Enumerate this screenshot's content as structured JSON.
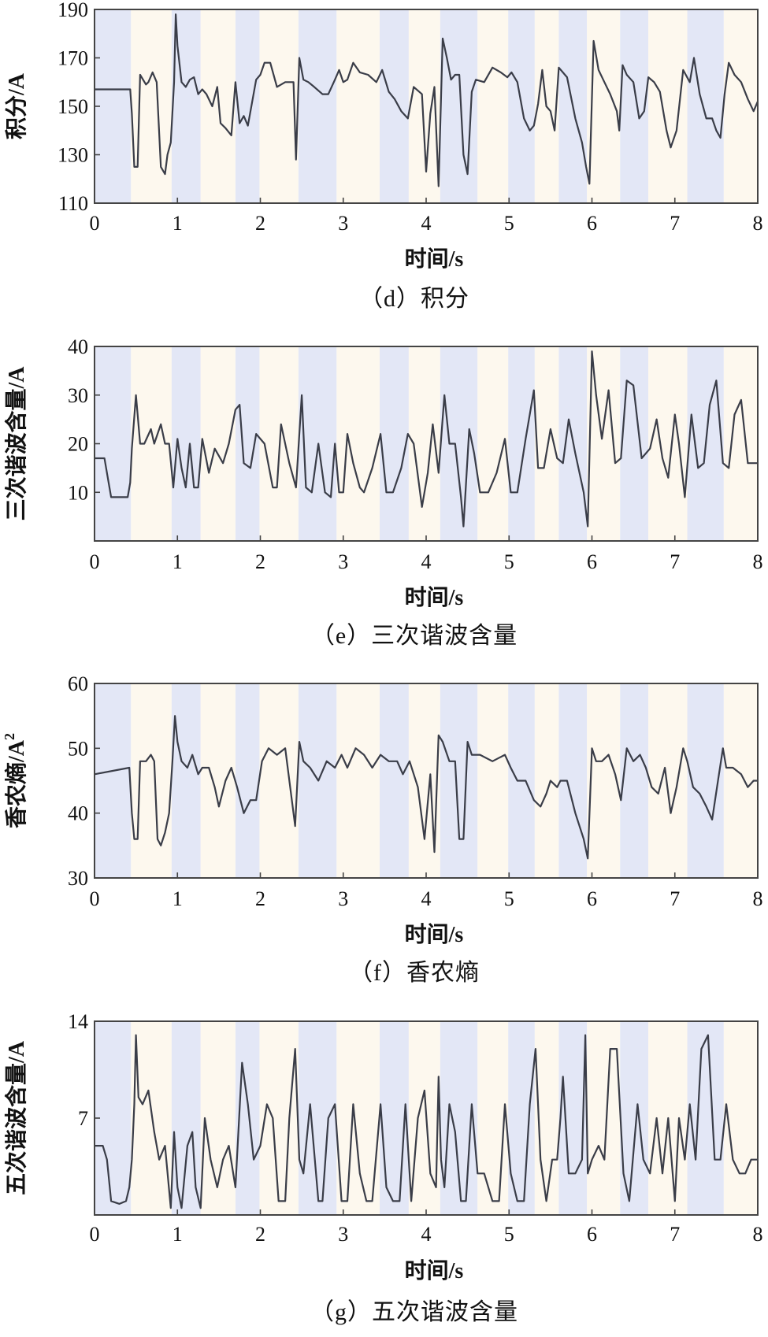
{
  "background_colors": [
    "#e3e7f6",
    "#fdf8ee"
  ],
  "background_bands": [
    [
      0,
      0.44,
      0
    ],
    [
      0.44,
      0.93,
      1
    ],
    [
      0.93,
      1.28,
      0
    ],
    [
      1.28,
      1.7,
      1
    ],
    [
      1.7,
      1.99,
      0
    ],
    [
      1.99,
      2.46,
      1
    ],
    [
      2.46,
      2.92,
      0
    ],
    [
      2.92,
      3.44,
      1
    ],
    [
      3.44,
      3.79,
      0
    ],
    [
      3.79,
      4.17,
      1
    ],
    [
      4.17,
      4.62,
      0
    ],
    [
      4.62,
      4.99,
      1
    ],
    [
      4.99,
      5.31,
      0
    ],
    [
      5.31,
      5.6,
      1
    ],
    [
      5.6,
      5.94,
      0
    ],
    [
      5.94,
      6.34,
      1
    ],
    [
      6.34,
      6.68,
      0
    ],
    [
      6.68,
      7.15,
      1
    ],
    [
      7.15,
      7.59,
      0
    ],
    [
      7.59,
      8,
      1
    ]
  ],
  "chart_data": [
    {
      "type": "line",
      "caption": "（d）积分",
      "xlabel": "时间/s",
      "ylabel": "积分/A",
      "xlim": [
        0,
        8
      ],
      "ylim": [
        110,
        190
      ],
      "xticks": [
        "0",
        "1",
        "2",
        "3",
        "4",
        "5",
        "6",
        "7",
        "8"
      ],
      "yticks": [
        "110",
        "130",
        "150",
        "170",
        "190"
      ],
      "series": [
        {
          "x": [
            0,
            0.43,
            0.45,
            0.48,
            0.52,
            0.55,
            0.62,
            0.65,
            0.7,
            0.75,
            0.8,
            0.85,
            0.88,
            0.92,
            0.96,
            0.98,
            1.0,
            1.05,
            1.1,
            1.15,
            1.2,
            1.25,
            1.3,
            1.35,
            1.42,
            1.48,
            1.52,
            1.58,
            1.65,
            1.7,
            1.75,
            1.8,
            1.85,
            1.95,
            2.0,
            2.05,
            2.12,
            2.2,
            2.3,
            2.4,
            2.43,
            2.47,
            2.52,
            2.58,
            2.65,
            2.75,
            2.82,
            2.9,
            2.95,
            3.0,
            3.05,
            3.12,
            3.2,
            3.3,
            3.4,
            3.47,
            3.55,
            3.62,
            3.7,
            3.78,
            3.85,
            3.95,
            4.0,
            4.05,
            4.1,
            4.15,
            4.2,
            4.25,
            4.3,
            4.35,
            4.4,
            4.45,
            4.5,
            4.55,
            4.6,
            4.7,
            4.8,
            4.9,
            4.98,
            5.03,
            5.1,
            5.18,
            5.25,
            5.3,
            5.35,
            5.4,
            5.45,
            5.5,
            5.55,
            5.6,
            5.7,
            5.8,
            5.88,
            5.93,
            5.97,
            6.02,
            6.08,
            6.15,
            6.22,
            6.3,
            6.33,
            6.37,
            6.42,
            6.5,
            6.57,
            6.63,
            6.68,
            6.75,
            6.82,
            6.9,
            6.95,
            7.02,
            7.1,
            7.18,
            7.23,
            7.3,
            7.38,
            7.45,
            7.5,
            7.55,
            7.6,
            7.65,
            7.72,
            7.8,
            7.88,
            7.95,
            8.0
          ],
          "y": [
            157,
            157,
            147,
            125,
            125,
            163,
            159,
            160,
            164,
            160,
            125,
            122,
            130,
            135,
            160,
            188,
            175,
            160,
            158,
            161,
            162,
            155,
            157,
            155,
            150,
            158,
            143,
            141,
            138,
            160,
            143,
            146,
            142,
            161,
            163,
            168,
            168,
            158,
            160,
            160,
            128,
            170,
            161,
            160,
            158,
            155,
            155,
            161,
            165,
            160,
            161,
            168,
            164,
            163,
            160,
            165,
            156,
            153,
            148,
            145,
            158,
            155,
            123,
            147,
            158,
            117,
            178,
            170,
            161,
            163,
            163,
            130,
            122,
            156,
            161,
            160,
            166,
            164,
            162,
            164,
            160,
            145,
            140,
            142,
            151,
            165,
            150,
            148,
            140,
            166,
            162,
            145,
            135,
            125,
            118,
            177,
            165,
            160,
            155,
            148,
            140,
            167,
            163,
            160,
            145,
            148,
            162,
            160,
            156,
            140,
            133,
            140,
            165,
            160,
            170,
            155,
            145,
            145,
            140,
            137,
            155,
            168,
            163,
            160,
            153,
            148,
            152
          ]
        }
      ]
    },
    {
      "type": "line",
      "caption": "（e）三次谐波含量",
      "xlabel": "时间/s",
      "ylabel": "三次谐波含量/A",
      "xlim": [
        0,
        8
      ],
      "ylim": [
        0,
        40
      ],
      "xticks": [
        "0",
        "1",
        "2",
        "3",
        "4",
        "5",
        "6",
        "7",
        "8"
      ],
      "yticks": [
        "10",
        "20",
        "30",
        "40"
      ],
      "series": [
        {
          "x": [
            0,
            0.12,
            0.17,
            0.2,
            0.27,
            0.4,
            0.43,
            0.45,
            0.5,
            0.55,
            0.6,
            0.68,
            0.72,
            0.8,
            0.85,
            0.9,
            0.95,
            1.0,
            1.05,
            1.1,
            1.15,
            1.2,
            1.25,
            1.3,
            1.38,
            1.45,
            1.55,
            1.62,
            1.7,
            1.75,
            1.8,
            1.88,
            1.95,
            2.05,
            2.15,
            2.2,
            2.25,
            2.35,
            2.43,
            2.5,
            2.55,
            2.62,
            2.7,
            2.78,
            2.85,
            2.9,
            2.95,
            3.0,
            3.05,
            3.12,
            3.2,
            3.25,
            3.35,
            3.45,
            3.52,
            3.6,
            3.7,
            3.78,
            3.85,
            3.95,
            4.02,
            4.08,
            4.15,
            4.22,
            4.28,
            4.35,
            4.42,
            4.45,
            4.52,
            4.58,
            4.65,
            4.75,
            4.85,
            4.95,
            5.02,
            5.1,
            5.2,
            5.3,
            5.35,
            5.42,
            5.5,
            5.58,
            5.65,
            5.72,
            5.8,
            5.9,
            5.95,
            6.0,
            6.05,
            6.12,
            6.2,
            6.28,
            6.35,
            6.42,
            6.5,
            6.6,
            6.7,
            6.78,
            6.85,
            6.92,
            7.0,
            7.05,
            7.12,
            7.2,
            7.28,
            7.35,
            7.42,
            7.5,
            7.58,
            7.65,
            7.72,
            7.8,
            7.88,
            7.95,
            8.0
          ],
          "y": [
            17,
            17,
            12,
            9,
            9,
            9,
            12,
            19,
            30,
            20,
            20,
            23,
            20,
            24,
            20,
            20,
            11,
            21,
            15,
            11,
            20,
            11,
            11,
            21,
            14,
            19,
            16,
            20,
            27,
            28,
            16,
            15,
            22,
            20,
            11,
            11,
            24,
            16,
            11,
            30,
            11,
            10,
            20,
            10,
            9,
            20,
            10,
            10,
            22,
            16,
            11,
            10,
            15,
            22,
            10,
            10,
            15,
            22,
            20,
            7,
            14,
            24,
            14,
            30,
            20,
            20,
            9,
            3,
            23,
            18,
            10,
            10,
            14,
            21,
            10,
            10,
            21,
            31,
            15,
            15,
            23,
            17,
            16,
            25,
            18,
            10,
            3,
            39,
            30,
            21,
            31,
            16,
            17,
            33,
            32,
            17,
            19,
            25,
            17,
            13,
            26,
            20,
            9,
            26,
            15,
            16,
            28,
            33,
            16,
            15,
            26,
            29,
            16,
            16,
            16
          ]
        }
      ]
    },
    {
      "type": "line",
      "caption": "（f）香农熵",
      "xlabel": "时间/s",
      "ylabel": "香农熵/A²",
      "ylabel_base": "香农熵/A",
      "ylabel_sup": "2",
      "xlim": [
        0,
        8
      ],
      "ylim": [
        30,
        60
      ],
      "xticks": [
        "0",
        "1",
        "2",
        "3",
        "4",
        "5",
        "6",
        "7",
        "8"
      ],
      "yticks": [
        "30",
        "40",
        "50",
        "60"
      ],
      "series": [
        {
          "x": [
            0,
            0.42,
            0.45,
            0.48,
            0.52,
            0.55,
            0.62,
            0.68,
            0.72,
            0.76,
            0.8,
            0.85,
            0.9,
            0.94,
            0.97,
            1.0,
            1.05,
            1.12,
            1.18,
            1.25,
            1.3,
            1.38,
            1.45,
            1.5,
            1.58,
            1.65,
            1.72,
            1.8,
            1.88,
            1.95,
            2.02,
            2.1,
            2.2,
            2.3,
            2.42,
            2.47,
            2.52,
            2.6,
            2.7,
            2.8,
            2.9,
            2.98,
            3.05,
            3.15,
            3.25,
            3.35,
            3.45,
            3.55,
            3.65,
            3.72,
            3.8,
            3.9,
            3.98,
            4.05,
            4.1,
            4.15,
            4.2,
            4.28,
            4.35,
            4.4,
            4.45,
            4.5,
            4.55,
            4.65,
            4.8,
            4.95,
            5.02,
            5.1,
            5.2,
            5.3,
            5.38,
            5.45,
            5.5,
            5.58,
            5.62,
            5.7,
            5.8,
            5.9,
            5.95,
            6.0,
            6.05,
            6.12,
            6.2,
            6.28,
            6.35,
            6.42,
            6.5,
            6.58,
            6.65,
            6.72,
            6.8,
            6.88,
            6.95,
            7.02,
            7.1,
            7.15,
            7.22,
            7.3,
            7.38,
            7.45,
            7.52,
            7.58,
            7.62,
            7.7,
            7.8,
            7.88,
            7.95,
            8.0
          ],
          "y": [
            46,
            47,
            40,
            36,
            36,
            48,
            48,
            49,
            48,
            36,
            35,
            37,
            40,
            48,
            55,
            51,
            48,
            47,
            49,
            46,
            47,
            47,
            44,
            41,
            45,
            47,
            44,
            40,
            42,
            42,
            48,
            50,
            49,
            50,
            38,
            51,
            48,
            47,
            45,
            48,
            47,
            49,
            47,
            50,
            49,
            47,
            49,
            48,
            48,
            46,
            48,
            44,
            36,
            46,
            34,
            52,
            51,
            48,
            48,
            36,
            36,
            51,
            49,
            49,
            48,
            49,
            47,
            45,
            45,
            42,
            41,
            43,
            45,
            44,
            45,
            45,
            40,
            36,
            33,
            50,
            48,
            48,
            49,
            46,
            42,
            50,
            48,
            49,
            47,
            44,
            43,
            47,
            40,
            44,
            50,
            48,
            44,
            43,
            41,
            39,
            45,
            50,
            47,
            47,
            46,
            44,
            45,
            45
          ]
        }
      ]
    },
    {
      "type": "line",
      "caption": "（g）五次谐波含量",
      "xlabel": "时间/s",
      "ylabel": "五次谐波含量/A",
      "xlim": [
        0,
        8
      ],
      "ylim": [
        0,
        14
      ],
      "xticks": [
        "0",
        "1",
        "2",
        "3",
        "4",
        "5",
        "6",
        "7",
        "8"
      ],
      "yticks": [
        "7",
        "14"
      ],
      "series": [
        {
          "x": [
            0,
            0.1,
            0.15,
            0.2,
            0.3,
            0.38,
            0.42,
            0.45,
            0.48,
            0.5,
            0.53,
            0.58,
            0.65,
            0.72,
            0.78,
            0.85,
            0.92,
            0.96,
            1.0,
            1.05,
            1.12,
            1.18,
            1.22,
            1.28,
            1.33,
            1.4,
            1.48,
            1.55,
            1.62,
            1.7,
            1.78,
            1.85,
            1.92,
            2.0,
            2.08,
            2.15,
            2.22,
            2.3,
            2.35,
            2.42,
            2.47,
            2.52,
            2.6,
            2.7,
            2.75,
            2.82,
            2.9,
            2.98,
            3.05,
            3.12,
            3.2,
            3.28,
            3.35,
            3.45,
            3.52,
            3.6,
            3.68,
            3.75,
            3.82,
            3.9,
            3.98,
            4.05,
            4.12,
            4.15,
            4.18,
            4.22,
            4.28,
            4.35,
            4.42,
            4.48,
            4.55,
            4.62,
            4.7,
            4.8,
            4.88,
            4.95,
            5.02,
            5.1,
            5.18,
            5.25,
            5.32,
            5.38,
            5.45,
            5.52,
            5.58,
            5.62,
            5.65,
            5.72,
            5.8,
            5.88,
            5.92,
            5.95,
            6.0,
            6.08,
            6.15,
            6.22,
            6.3,
            6.38,
            6.45,
            6.55,
            6.62,
            6.7,
            6.78,
            6.85,
            6.92,
            7.0,
            7.05,
            7.12,
            7.18,
            7.25,
            7.32,
            7.4,
            7.48,
            7.55,
            7.62,
            7.7,
            7.78,
            7.85,
            7.92,
            8.0
          ],
          "y": [
            5,
            5,
            4,
            1,
            0.8,
            1,
            2,
            4,
            8,
            13,
            8.5,
            8,
            9,
            6,
            4,
            5,
            0.5,
            6,
            2,
            0.5,
            5,
            6,
            2,
            0.5,
            7,
            4,
            2,
            4,
            5,
            2,
            11,
            8,
            4,
            5,
            8,
            7,
            1,
            1,
            7,
            12,
            4,
            3,
            8,
            1,
            1,
            7,
            8,
            1,
            1,
            8,
            3,
            1,
            1,
            8,
            2,
            1,
            1,
            8,
            1,
            7,
            9,
            3,
            2,
            10,
            4,
            2,
            8,
            6,
            1,
            1,
            8,
            3,
            3,
            1,
            1,
            8,
            3,
            1,
            1,
            8,
            12,
            4,
            1,
            4,
            4,
            7,
            10,
            3,
            3,
            4,
            13,
            3,
            4,
            5,
            4,
            12,
            12,
            3,
            1,
            8,
            4,
            3,
            7,
            3,
            7,
            1,
            7,
            4,
            8,
            4,
            12,
            13,
            4,
            4,
            8,
            4,
            3,
            3,
            4,
            4
          ]
        }
      ]
    }
  ]
}
